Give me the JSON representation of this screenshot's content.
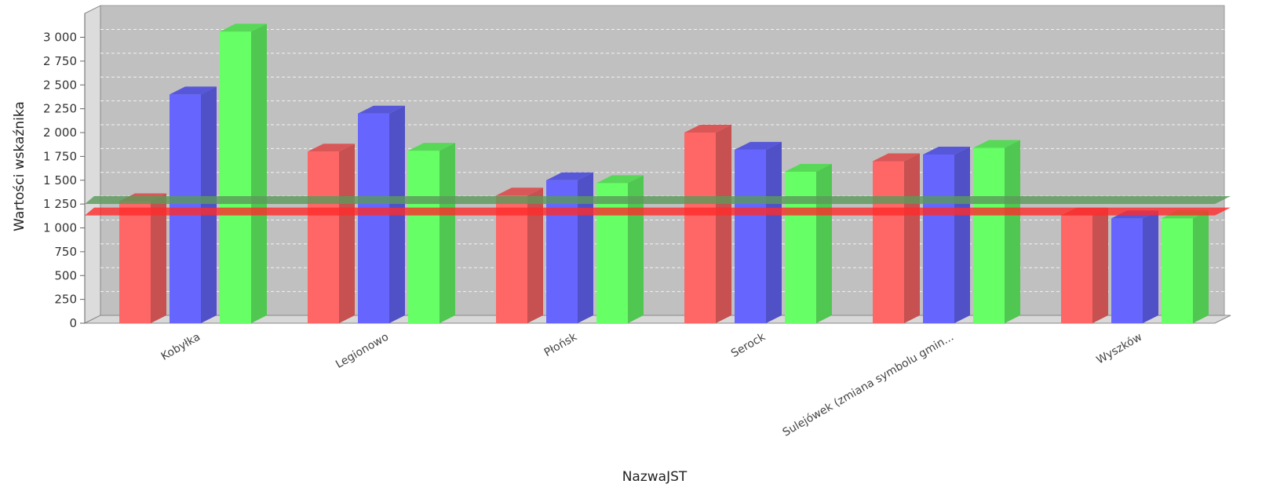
{
  "chart_data": {
    "type": "bar",
    "style": "3d-clustered",
    "categories": [
      "Kobyłka",
      "Legionowo",
      "Płońsk",
      "Serock",
      "Sulejówek (zmiana symbolu gmin...",
      "Wyszków"
    ],
    "series": [
      {
        "color": "#ff6666",
        "values": [
          1280,
          1800,
          1340,
          2000,
          1700,
          1130
        ]
      },
      {
        "color": "#6666ff",
        "values": [
          2400,
          2200,
          1500,
          1820,
          1770,
          1100
        ]
      },
      {
        "color": "#66ff66",
        "values": [
          3060,
          1810,
          1470,
          1590,
          1840,
          1100
        ]
      }
    ],
    "reference_lines": [
      {
        "value": 1300,
        "color": "#5a9a5a"
      },
      {
        "value": 1180,
        "color": "#ff2a2a"
      }
    ],
    "xlabel": "NazwaJST",
    "ylabel": "Wartości wskaźnika",
    "ylim": [
      0,
      3250
    ],
    "yticks": [
      0,
      250,
      500,
      750,
      1000,
      1250,
      1500,
      1750,
      2000,
      2250,
      2500,
      2750,
      3000
    ],
    "ytick_labels": [
      "0",
      "250",
      "500",
      "750",
      "1 000",
      "1 250",
      "1 500",
      "1 750",
      "2 000",
      "2 250",
      "2 500",
      "2 750",
      "3 000"
    ],
    "grid": true,
    "legend": "none"
  }
}
